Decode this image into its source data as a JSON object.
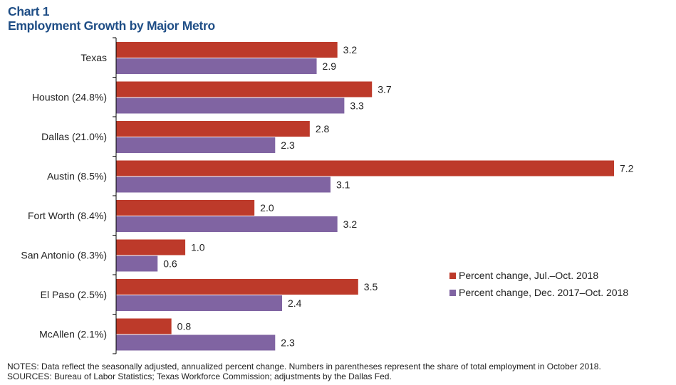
{
  "chart_data": {
    "type": "bar",
    "orientation": "horizontal",
    "title": "Chart 1",
    "subtitle": "Employment Growth by Major Metro",
    "categories": [
      "Texas",
      "Houston (24.8%)",
      "Dallas (21.0%)",
      "Austin (8.5%)",
      "Fort Worth (8.4%)",
      "San Antonio (8.3%)",
      "El Paso (2.5%)",
      "McAllen (2.1%)"
    ],
    "series": [
      {
        "name": "Percent change, Jul.–Oct.  2018",
        "color": "#bd3a2a",
        "values": [
          3.2,
          3.7,
          2.8,
          7.2,
          2.0,
          1.0,
          3.5,
          0.8
        ]
      },
      {
        "name": "Percent change, Dec. 2017–Oct. 2018",
        "color": "#8064a2",
        "values": [
          2.9,
          3.3,
          2.3,
          3.1,
          3.2,
          0.6,
          2.4,
          2.3
        ]
      }
    ],
    "xlim": [
      0,
      7.2
    ],
    "data_labels": true,
    "grid": false,
    "legend_placement": "bottom-right"
  },
  "notes": "NOTES: Data reflect the seasonally adjusted, annualized percent change. Numbers in parentheses represent the share of total employment in October 2018.",
  "sources": "SOURCES: Bureau of Labor Statistics; Texas Workforce Commission; adjustments by the Dallas Fed."
}
